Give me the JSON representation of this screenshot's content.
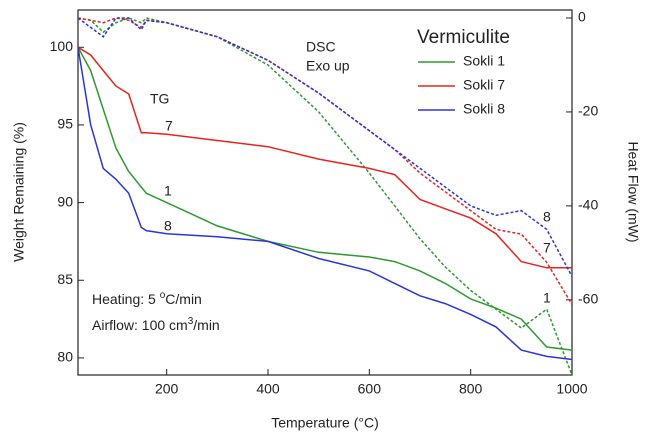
{
  "chart_data": {
    "type": "line",
    "xlabel": "Temperature (°C)",
    "ylabel": "Weight Remaining (%)",
    "y2label": "Heat Flow (mW)",
    "legend_title": "Vermiculite",
    "legend": "upper right",
    "x": [
      25,
      50,
      75,
      100,
      125,
      150,
      160,
      200,
      300,
      400,
      500,
      600,
      650,
      700,
      750,
      800,
      850,
      900,
      950,
      1000
    ],
    "xlim": [
      25,
      1000
    ],
    "xticks": [
      200,
      400,
      600,
      800,
      1000
    ],
    "ylim": [
      78.9,
      102.4
    ],
    "yticks": [
      80,
      85,
      90,
      95,
      100
    ],
    "y2lim": [
      -76,
      1.7
    ],
    "y2ticks": [
      -60,
      -40,
      -20,
      0
    ],
    "series": [
      {
        "name": "Sokli 1",
        "color": "#2e9a2e",
        "values": [
          100,
          98.5,
          96,
          93.5,
          92,
          91,
          90.6,
          90,
          88.5,
          87.5,
          86.8,
          86.5,
          86.2,
          85.6,
          84.8,
          83.8,
          83.2,
          82.5,
          80.7,
          80.5
        ],
        "y2_values": [
          0,
          -0.5,
          -3,
          -1,
          0,
          -1,
          0,
          -1,
          -4,
          -10,
          -20,
          -33,
          -40,
          -47,
          -53,
          -58,
          -62,
          -66,
          -62,
          -76
        ]
      },
      {
        "name": "Sokli 7",
        "color": "#e8231e",
        "values": [
          100,
          99.5,
          98.5,
          97.5,
          97,
          94.5,
          94.5,
          94.4,
          94.0,
          93.6,
          92.8,
          92.2,
          91.8,
          90.2,
          89.6,
          89.0,
          88.0,
          86.2,
          85.8,
          85.8
        ],
        "y2_values": [
          0,
          -0.5,
          -1,
          0,
          -0.5,
          -2,
          -0.5,
          -1,
          -4,
          -9,
          -16,
          -24,
          -28,
          -33,
          -37,
          -41,
          -45,
          -46,
          -52,
          -61
        ]
      },
      {
        "name": "Sokli 8",
        "color": "#2a35d8",
        "values": [
          100,
          95,
          92.2,
          91.5,
          90.6,
          88.4,
          88.2,
          88.0,
          87.8,
          87.5,
          86.4,
          85.6,
          84.8,
          84.0,
          83.5,
          82.8,
          82.0,
          80.5,
          80.1,
          79.9
        ],
        "y2_values": [
          0,
          -2,
          -4,
          0,
          0,
          -2.5,
          -0.5,
          -1,
          -4,
          -9,
          -16,
          -24,
          -28,
          -32,
          -36,
          -40,
          -42,
          -41,
          -45,
          -55
        ]
      }
    ],
    "annotations": [
      "DSC",
      "Exo up",
      "TG",
      "7",
      "1",
      "8",
      "8",
      "7",
      "1"
    ],
    "heating": {
      "text": "Heating: 5 ",
      "sup": "o",
      "rest": "C/min"
    },
    "airflow": {
      "text": "Airflow: 100 cm",
      "sup": "3",
      "rest": "/min"
    }
  }
}
